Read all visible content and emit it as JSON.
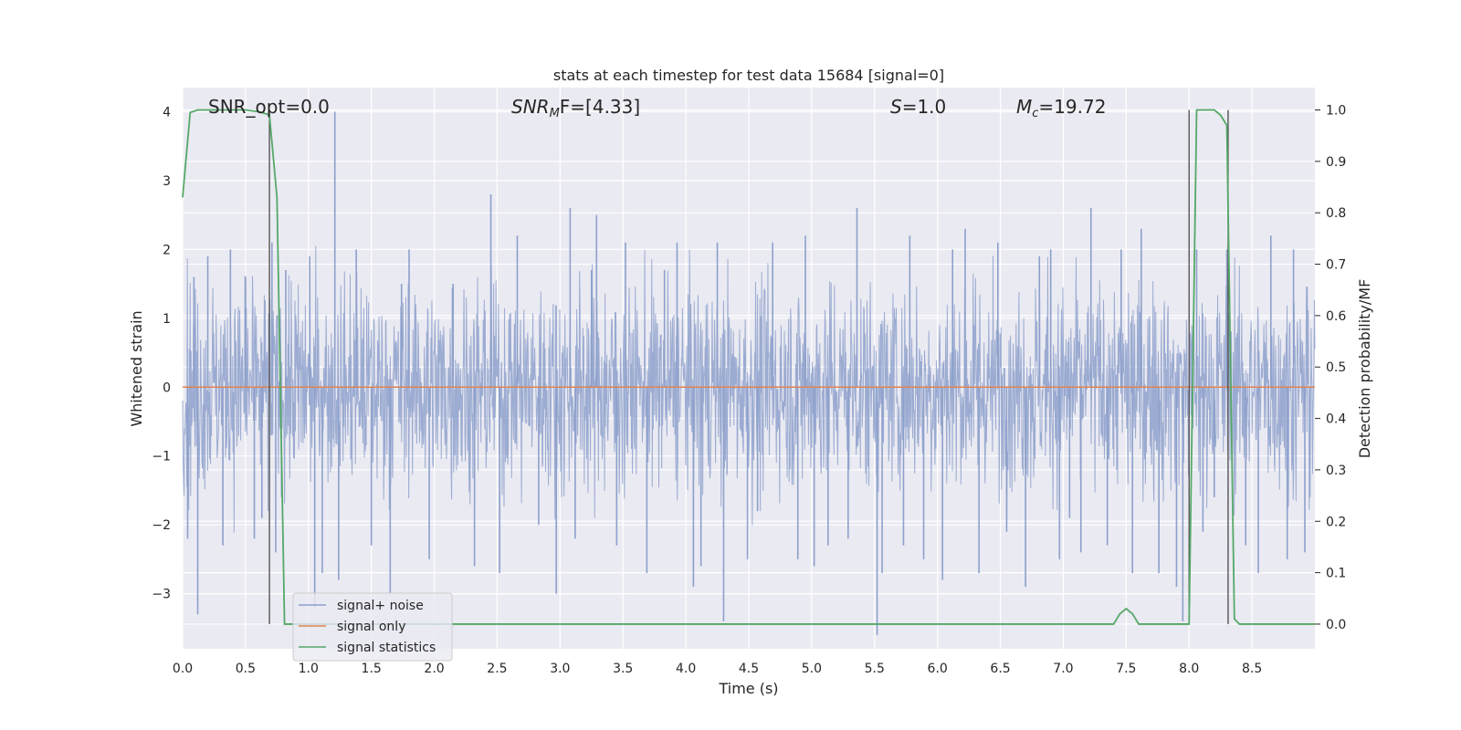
{
  "chart_data": {
    "type": "line",
    "title": "stats at each timestep for test data 15684 [signal=0]",
    "xlabel": "Time (s)",
    "ylabel": "Whitened strain",
    "y2label": "Detection probability/MF",
    "xlim": [
      0,
      9
    ],
    "ylim": [
      -3.8,
      4.35
    ],
    "y2lim": [
      -0.048,
      1.0435
    ],
    "xticks": [
      "0.0",
      "0.5",
      "1.0",
      "1.5",
      "2.0",
      "2.5",
      "3.0",
      "3.5",
      "4.0",
      "4.5",
      "5.0",
      "5.5",
      "6.0",
      "6.5",
      "7.0",
      "7.5",
      "8.0",
      "8.5"
    ],
    "yticks": [
      "−3",
      "−2",
      "−1",
      "0",
      "1",
      "2",
      "3",
      "4"
    ],
    "y2ticks": [
      "0.0",
      "0.1",
      "0.2",
      "0.3",
      "0.4",
      "0.5",
      "0.6",
      "0.7",
      "0.8",
      "0.9",
      "1.0"
    ],
    "grid": true,
    "legend_position": "lower-left",
    "annotations": [
      {
        "text": "SNR_opt=0.0"
      },
      {
        "text": "SNRₘF=[4.33]",
        "base": "SNR",
        "sub": "M",
        "rest": "F=[4.33]"
      },
      {
        "text": "S=1.0",
        "base": "S",
        "rest": "=1.0"
      },
      {
        "text": "Mᶜ=19.72",
        "base": "M",
        "sub": "c",
        "rest": "=19.72"
      }
    ],
    "vlines_x": [
      0.69,
      8.0,
      8.31
    ],
    "series": [
      {
        "name": "signal+ noise",
        "color": "#8da0cb",
        "axis": "left",
        "description_values": "whitened noise, approx. 9 s",
        "peaks": [
          [
            0.04,
            -2.2
          ],
          [
            0.09,
            1.6
          ],
          [
            0.12,
            -3.3
          ],
          [
            0.2,
            1.9
          ],
          [
            0.32,
            -2.3
          ],
          [
            0.38,
            2.0
          ],
          [
            0.5,
            1.6
          ],
          [
            0.57,
            -2.2
          ],
          [
            0.63,
            -1.9
          ],
          [
            0.71,
            2.1
          ],
          [
            0.74,
            -2.4
          ],
          [
            0.82,
            1.7
          ],
          [
            1.01,
            1.9
          ],
          [
            1.05,
            -3.2
          ],
          [
            1.11,
            -2.7
          ],
          [
            1.21,
            4.0
          ],
          [
            1.24,
            -2.8
          ],
          [
            1.38,
            2.0
          ],
          [
            1.5,
            -2.3
          ],
          [
            1.65,
            -3.0
          ],
          [
            1.74,
            1.5
          ],
          [
            1.8,
            2.0
          ],
          [
            1.96,
            -2.5
          ],
          [
            2.15,
            1.5
          ],
          [
            2.32,
            -2.6
          ],
          [
            2.45,
            2.8
          ],
          [
            2.52,
            -2.7
          ],
          [
            2.66,
            2.2
          ],
          [
            2.83,
            -2.0
          ],
          [
            2.97,
            -3.0
          ],
          [
            3.08,
            2.6
          ],
          [
            3.12,
            -2.2
          ],
          [
            3.25,
            1.7
          ],
          [
            3.29,
            2.5
          ],
          [
            3.45,
            -2.3
          ],
          [
            3.52,
            2.1
          ],
          [
            3.69,
            -2.7
          ],
          [
            3.83,
            1.7
          ],
          [
            3.93,
            2.1
          ],
          [
            4.06,
            -2.9
          ],
          [
            4.12,
            -2.6
          ],
          [
            4.25,
            2.1
          ],
          [
            4.3,
            -3.4
          ],
          [
            4.49,
            -2.5
          ],
          [
            4.57,
            -1.8
          ],
          [
            4.69,
            2.1
          ],
          [
            4.89,
            -2.5
          ],
          [
            4.95,
            2.2
          ],
          [
            5.02,
            -2.6
          ],
          [
            5.13,
            -2.3
          ],
          [
            5.29,
            -2.2
          ],
          [
            5.36,
            2.6
          ],
          [
            5.52,
            -3.6
          ],
          [
            5.56,
            -2.7
          ],
          [
            5.73,
            -2.3
          ],
          [
            5.78,
            2.2
          ],
          [
            5.89,
            -2.5
          ],
          [
            6.04,
            -2.8
          ],
          [
            6.12,
            2.0
          ],
          [
            6.22,
            2.3
          ],
          [
            6.33,
            -2.7
          ],
          [
            6.48,
            2.1
          ],
          [
            6.55,
            -2.1
          ],
          [
            6.7,
            -2.9
          ],
          [
            6.81,
            1.9
          ],
          [
            6.9,
            2.0
          ],
          [
            6.97,
            -2.5
          ],
          [
            7.05,
            -1.9
          ],
          [
            7.14,
            -2.4
          ],
          [
            7.22,
            2.6
          ],
          [
            7.35,
            -2.3
          ],
          [
            7.46,
            2.0
          ],
          [
            7.55,
            -2.7
          ],
          [
            7.62,
            2.3
          ],
          [
            7.76,
            -2.7
          ],
          [
            7.9,
            -2.9
          ],
          [
            7.95,
            -3.4
          ],
          [
            8.06,
            2.0
          ],
          [
            8.11,
            -2.1
          ],
          [
            8.2,
            -1.6
          ],
          [
            8.3,
            2.0
          ],
          [
            8.45,
            -2.3
          ],
          [
            8.55,
            -2.7
          ],
          [
            8.65,
            2.2
          ],
          [
            8.78,
            -2.5
          ],
          [
            8.83,
            2.0
          ],
          [
            8.92,
            -2.4
          ]
        ]
      },
      {
        "name": "signal only",
        "color": "#dd8452",
        "axis": "left",
        "x": [
          0,
          9
        ],
        "y": [
          0,
          0
        ]
      },
      {
        "name": "signal statistics",
        "color": "#55a868",
        "axis": "right",
        "x": [
          0.0,
          0.06,
          0.12,
          0.25,
          0.5,
          0.62,
          0.69,
          0.75,
          0.81,
          1.5,
          3.0,
          4.5,
          6.0,
          7.0,
          7.4,
          7.45,
          7.5,
          7.55,
          7.6,
          7.8,
          8.0,
          8.06,
          8.2,
          8.25,
          8.3,
          8.36,
          8.4,
          8.5,
          9.0
        ],
        "y": [
          0.83,
          0.995,
          1.0,
          1.0,
          1.0,
          0.996,
          0.99,
          0.83,
          0.0,
          0.0,
          0.0,
          0.0,
          0.0,
          0.0,
          0.0,
          0.02,
          0.03,
          0.02,
          0.0,
          0.0,
          0.0,
          1.0,
          1.0,
          0.99,
          0.97,
          0.01,
          0.0,
          0.0,
          0.0
        ]
      }
    ]
  }
}
